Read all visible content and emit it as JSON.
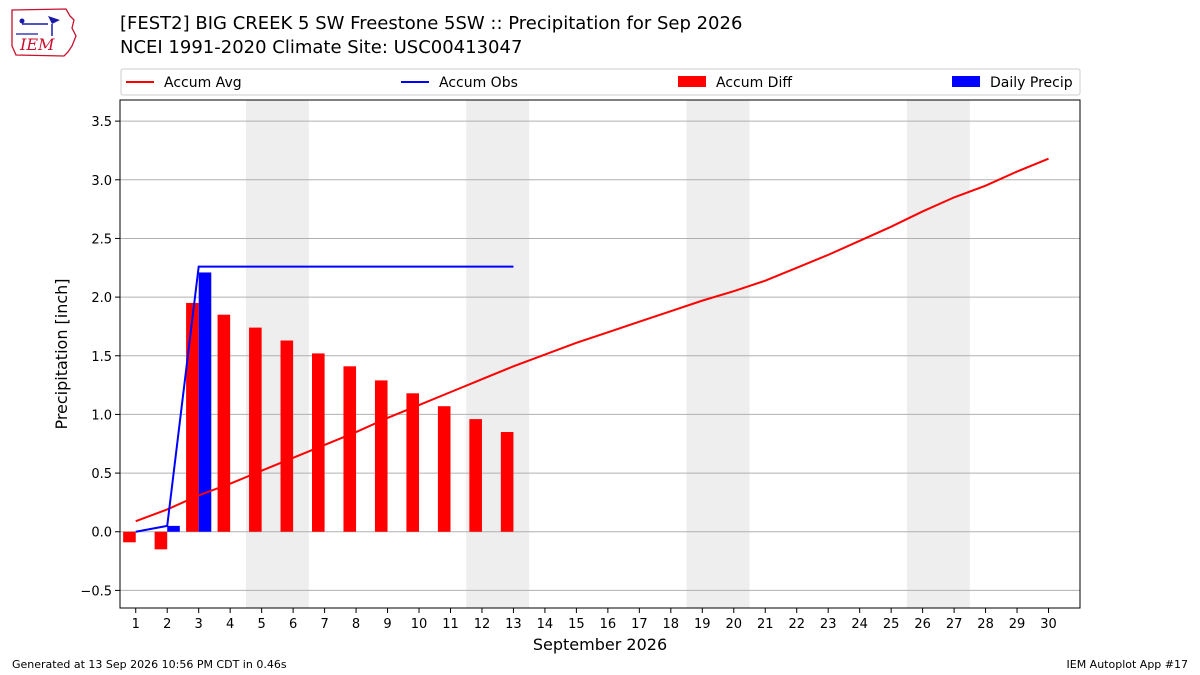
{
  "header": {
    "logo_text": "IEM",
    "title_line1": "[FEST2] BIG CREEK 5 SW Freestone 5SW :: Precipitation for Sep 2026",
    "title_line2": "NCEI 1991-2020 Climate Site: USC00413047"
  },
  "footer": {
    "generated": "Generated at 13 Sep 2026 10:56 PM CDT in 0.46s",
    "app": "IEM Autoplot App #17"
  },
  "chart_data": {
    "type": "bar",
    "xlabel": "September 2026",
    "ylabel": "Precipitation [inch]",
    "ylim": [
      -0.65,
      3.68
    ],
    "xlim": [
      0.5,
      31
    ],
    "yticks": [
      -0.5,
      0.0,
      0.5,
      1.0,
      1.5,
      2.0,
      2.5,
      3.0,
      3.5
    ],
    "ytick_labels": [
      "−0.5",
      "0.0",
      "0.5",
      "1.0",
      "1.5",
      "2.0",
      "2.5",
      "3.0",
      "3.5"
    ],
    "days": [
      1,
      2,
      3,
      4,
      5,
      6,
      7,
      8,
      9,
      10,
      11,
      12,
      13,
      14,
      15,
      16,
      17,
      18,
      19,
      20,
      21,
      22,
      23,
      24,
      25,
      26,
      27,
      28,
      29,
      30
    ],
    "grid": "horizontal",
    "legend_placement": "top",
    "weekend_shading": [
      [
        4.5,
        6.5
      ],
      [
        11.5,
        13.5
      ],
      [
        18.5,
        20.5
      ],
      [
        25.5,
        27.5
      ]
    ],
    "series": [
      {
        "name": "Accum Avg",
        "kind": "line",
        "color": "#ff0000",
        "x": [
          1,
          2,
          3,
          4,
          5,
          6,
          7,
          8,
          9,
          10,
          11,
          12,
          13,
          14,
          15,
          16,
          17,
          18,
          19,
          20,
          21,
          22,
          23,
          24,
          25,
          26,
          27,
          28,
          29,
          30
        ],
        "values": [
          0.09,
          0.19,
          0.31,
          0.41,
          0.52,
          0.63,
          0.74,
          0.85,
          0.97,
          1.08,
          1.19,
          1.3,
          1.41,
          1.51,
          1.61,
          1.7,
          1.79,
          1.88,
          1.97,
          2.05,
          2.14,
          2.25,
          2.36,
          2.48,
          2.6,
          2.73,
          2.85,
          2.95,
          3.07,
          3.18
        ]
      },
      {
        "name": "Accum Obs",
        "kind": "line",
        "color": "#0000ff",
        "x": [
          1,
          2,
          3,
          4,
          5,
          6,
          7,
          8,
          9,
          10,
          11,
          12,
          13
        ],
        "values": [
          0.0,
          0.05,
          2.26,
          2.26,
          2.26,
          2.26,
          2.26,
          2.26,
          2.26,
          2.26,
          2.26,
          2.26,
          2.26
        ]
      },
      {
        "name": "Accum Diff",
        "kind": "bar",
        "color": "#ff0000",
        "x": [
          1,
          2,
          3,
          4,
          5,
          6,
          7,
          8,
          9,
          10,
          11,
          12,
          13
        ],
        "values": [
          -0.09,
          -0.15,
          1.95,
          1.85,
          1.74,
          1.63,
          1.52,
          1.41,
          1.29,
          1.18,
          1.07,
          0.96,
          0.85
        ]
      },
      {
        "name": "Daily Precip",
        "kind": "bar",
        "color": "#0000ff",
        "x": [
          1,
          2,
          3,
          4,
          5,
          6,
          7,
          8,
          9,
          10,
          11,
          12,
          13
        ],
        "values": [
          0.0,
          0.05,
          2.21,
          0,
          0,
          0,
          0,
          0,
          0,
          0,
          0,
          0,
          0
        ]
      }
    ]
  }
}
